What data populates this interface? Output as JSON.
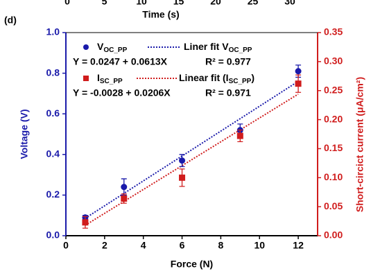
{
  "panel_label": "(d)",
  "previous_panel": {
    "xticks": [
      0,
      5,
      10,
      15,
      20,
      25,
      30
    ],
    "xlabel": "Time (s)"
  },
  "chart_data": {
    "type": "scatter",
    "xlabel": "Force (N)",
    "ylabel": "Voltage (V)",
    "y2label": "Short-circict current (μA/cm²)",
    "xlim": [
      0,
      13
    ],
    "xticks": [
      0,
      2,
      4,
      6,
      8,
      10,
      12
    ],
    "ylim": [
      0,
      1.0
    ],
    "yticks": [
      {
        "value": 0,
        "label": "0.0"
      },
      {
        "value": 0.2,
        "label": "0.2"
      },
      {
        "value": 0.4,
        "label": "0.4"
      },
      {
        "value": 0.6,
        "label": "0.6"
      },
      {
        "value": 0.8,
        "label": "0.8"
      },
      {
        "value": 1.0,
        "label": "1.0"
      }
    ],
    "y2lim": [
      0,
      0.35
    ],
    "y2ticks": [
      {
        "value": 0,
        "label": "0.00"
      },
      {
        "value": 0.05,
        "label": "0.05"
      },
      {
        "value": 0.1,
        "label": "0.10"
      },
      {
        "value": 0.15,
        "label": "0.15"
      },
      {
        "value": 0.2,
        "label": "0.20"
      },
      {
        "value": 0.25,
        "label": "0.25"
      },
      {
        "value": 0.3,
        "label": "0.30"
      },
      {
        "value": 0.35,
        "label": "0.35"
      }
    ],
    "series": [
      {
        "name": "V",
        "name_sub": "OC_PP",
        "color": "#1a1aaa",
        "marker": "circle",
        "x": [
          1,
          3,
          6,
          9,
          12
        ],
        "values": [
          0.09,
          0.24,
          0.37,
          0.52,
          0.81
        ],
        "errors": [
          0.01,
          0.04,
          0.03,
          0.03,
          0.03
        ]
      },
      {
        "name": "I",
        "name_sub": "SC_PP",
        "color": "#d01c1c",
        "marker": "square",
        "axis": "y2",
        "x": [
          1,
          3,
          6,
          9,
          12
        ],
        "values": [
          0.023,
          0.064,
          0.1,
          0.172,
          0.262
        ],
        "errors": [
          0.01,
          0.008,
          0.015,
          0.01,
          0.015
        ]
      }
    ],
    "fits": [
      {
        "name": "Liner fit V",
        "name_sub": "OC_PP",
        "color": "#1a1aaa",
        "x": [
          1,
          12
        ],
        "values": [
          0.086,
          0.76
        ],
        "equation": "Y = 0.0247 + 0.0613X",
        "r2": "R² = 0.977"
      },
      {
        "name": "Linear fit (I",
        "name_sub": "SC_PP",
        "name_end": ")",
        "color": "#d01c1c",
        "axis": "y2",
        "x": [
          1,
          12
        ],
        "values": [
          0.018,
          0.244
        ],
        "equation": "Y = -0.0028 + 0.0206X",
        "r2": "R² = 0.971"
      }
    ]
  }
}
